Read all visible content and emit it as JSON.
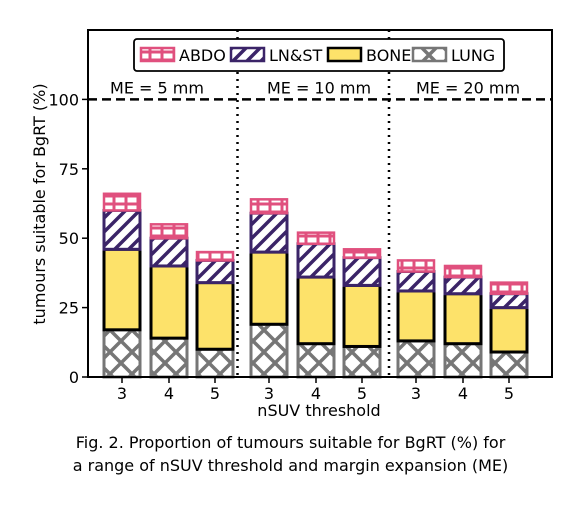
{
  "caption": {
    "line1": "Fig. 2. Proportion of tumours suitable for BgRT (%) for",
    "line2": "a range of nSUV threshold and margin expansion (ME)"
  },
  "chart_data": {
    "type": "bar",
    "stacked": true,
    "xlabel": "nSUV threshold",
    "ylabel": "tumours suitable for BgRT (%)",
    "ylim": [
      0,
      125
    ],
    "yticks": [
      0,
      25,
      50,
      75,
      100
    ],
    "reference_line": {
      "y": 100,
      "style": "dashed"
    },
    "legend_position": "top-center",
    "groups": [
      {
        "label": "ME = 5 mm",
        "categories": [
          "3",
          "4",
          "5"
        ]
      },
      {
        "label": "ME = 10 mm",
        "categories": [
          "3",
          "4",
          "5"
        ]
      },
      {
        "label": "ME = 20 mm",
        "categories": [
          "3",
          "4",
          "5"
        ]
      }
    ],
    "series": [
      {
        "name": "LUNG",
        "color": "#767676",
        "hatch": "x",
        "values": [
          17,
          14,
          10,
          19,
          12,
          11,
          13,
          12,
          9
        ]
      },
      {
        "name": "BONE",
        "color": "#fde26a",
        "hatch": "none",
        "values": [
          29,
          26,
          24,
          26,
          24,
          22,
          18,
          18,
          16
        ]
      },
      {
        "name": "LN&ST",
        "color": "#3b2468",
        "hatch": "diagonal",
        "values": [
          14,
          10,
          8,
          14,
          12,
          10,
          7,
          6,
          5
        ]
      },
      {
        "name": "ABDO",
        "color": "#e0507e",
        "hatch": "grid",
        "values": [
          6,
          5,
          3,
          5,
          4,
          3,
          4,
          4,
          4
        ]
      }
    ],
    "legend_order": [
      "ABDO",
      "LN&ST",
      "BONE",
      "LUNG"
    ]
  }
}
